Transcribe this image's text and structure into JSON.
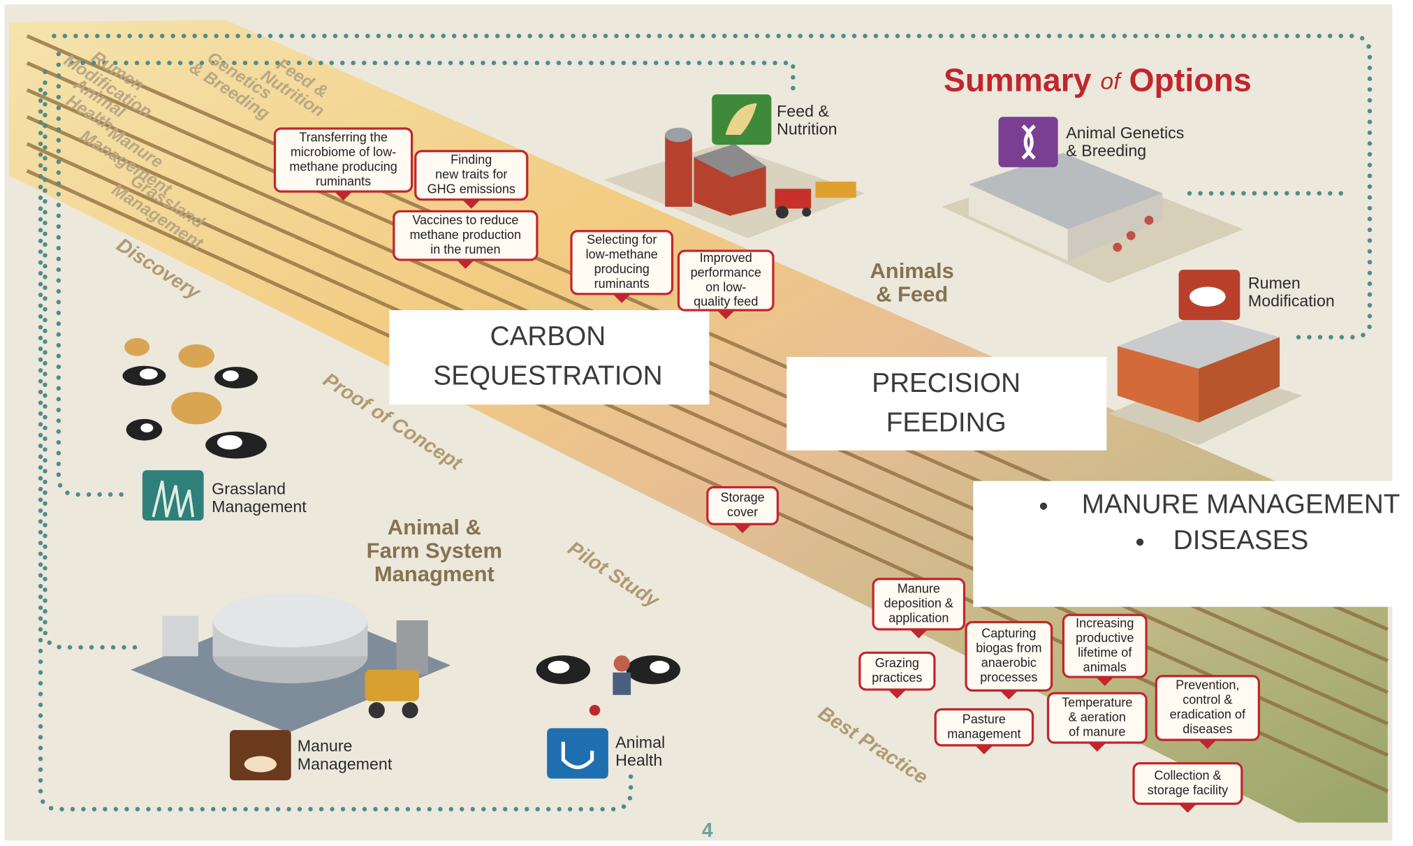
{
  "title": [
    "Summary",
    "of",
    "Options"
  ],
  "lanes": [
    [
      "Feed &",
      "Nutrition"
    ],
    [
      "Genetics",
      "& Breeding"
    ],
    [
      "Rumen",
      "Modification"
    ],
    [
      "Animal",
      "Health"
    ],
    [
      "Manure",
      "Management"
    ],
    [
      "Grassland",
      "Management"
    ]
  ],
  "stages": [
    "Discovery",
    "Proof of Concept",
    "Pilot Study",
    "Best Practice"
  ],
  "callouts": [
    [
      "Transferring the",
      "microbiome of low-",
      "methane producing",
      "ruminants"
    ],
    [
      "Finding",
      "new traits for",
      "GHG emissions"
    ],
    [
      "Vaccines to reduce",
      "methane production",
      "in the rumen"
    ],
    [
      "Selecting for",
      "low-methane",
      "producing",
      "ruminants"
    ],
    [
      "Improved",
      "performance",
      "on low-",
      "quality feed"
    ],
    [
      "Storage",
      "cover"
    ],
    [
      "Manure",
      "deposition &",
      "application"
    ],
    [
      "Grazing",
      "practices"
    ],
    [
      "Capturing",
      "biogas from",
      "anaerobic",
      "processes"
    ],
    [
      "Increasing",
      "productive",
      "lifetime of",
      "animals"
    ],
    [
      "Pasture",
      "management"
    ],
    [
      "Temperature",
      "& aeration",
      "of manure"
    ],
    [
      "Prevention,",
      "control &",
      "eradication of",
      "diseases"
    ],
    [
      "Collection &",
      "storage facility"
    ]
  ],
  "icons": [
    [
      "Feed &",
      "Nutrition"
    ],
    [
      "Animal Genetics",
      "& Breeding"
    ],
    [
      "Rumen",
      "Modification"
    ],
    [
      "Grassland",
      "Management"
    ],
    [
      "Manure",
      "Management"
    ],
    [
      "Animal",
      "Health"
    ]
  ],
  "sections": [
    [
      "Animals",
      "& Feed"
    ],
    [
      "Animal &",
      "Farm System",
      "Managment"
    ]
  ],
  "overlays": [
    [
      "CARBON",
      "SEQUESTRATION"
    ],
    [
      "PRECISION",
      "FEEDING"
    ],
    [
      "MANURE MANAGEMENT",
      "DISEASES"
    ]
  ],
  "page_number": "4"
}
